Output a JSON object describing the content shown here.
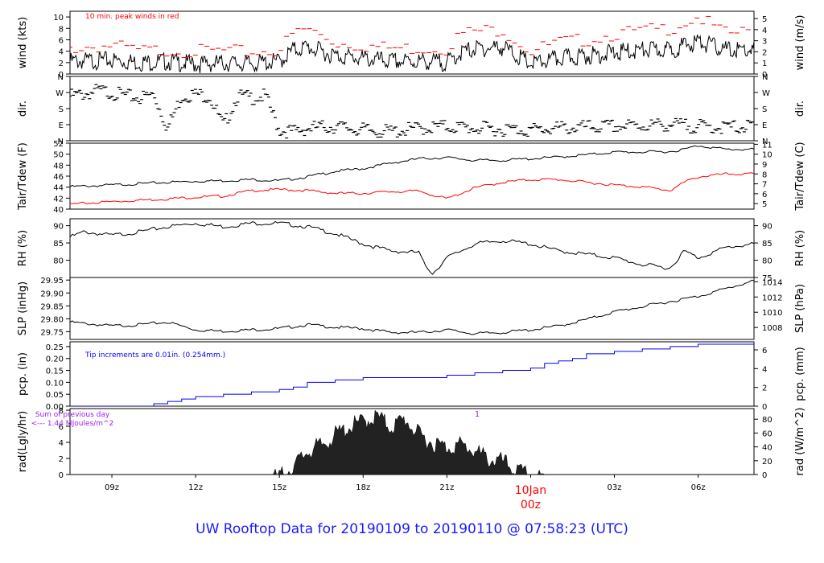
{
  "footer": {
    "title": "UW Rooftop Data for 20190109  to  20190110 @ 07:58:23  (UTC)"
  },
  "colors": {
    "black": "#000000",
    "red": "#ff0000",
    "blue": "#0000ff",
    "purple": "#a020f0",
    "footer": "#1a1aff"
  },
  "x_axis": {
    "range_hours": [
      -16.5,
      8
    ],
    "ticks": [
      {
        "label": "09z",
        "hour": -15
      },
      {
        "label": "12z",
        "hour": -12
      },
      {
        "label": "15z",
        "hour": -9
      },
      {
        "label": "18z",
        "hour": -6
      },
      {
        "label": "21z",
        "hour": -3
      },
      {
        "label": "00z",
        "hour": 0
      },
      {
        "label": "03z",
        "hour": 3
      },
      {
        "label": "06z",
        "hour": 6
      }
    ],
    "day_marker": {
      "hour": 0,
      "date_label": "10Jan",
      "time_label": "00z"
    }
  },
  "chart_data": [
    {
      "id": "wind",
      "type": "line",
      "ylabel_left": "wind (kts)",
      "ylabel_right": "wind (m/s)",
      "ylim": [
        0,
        11
      ],
      "left_ticks": [
        "0",
        "2",
        "4",
        "6",
        "8",
        "10"
      ],
      "right_ticks": [
        "0",
        "1",
        "2",
        "3",
        "4",
        "5"
      ],
      "annotation": "10 min. peak winds in red",
      "series": [
        {
          "name": "wind speed",
          "color": "black",
          "x": [
            -16.5,
            -15,
            -14,
            -13,
            -12,
            -11,
            -10,
            -9,
            -8.5,
            -8,
            -7,
            -6,
            -5,
            -4,
            -3,
            -2.5,
            -2,
            -1,
            0,
            1,
            2,
            3,
            4,
            5,
            6,
            7,
            8
          ],
          "values": [
            3,
            3.2,
            2.8,
            3,
            2.5,
            2.7,
            2.6,
            3,
            5,
            5.5,
            4,
            3.5,
            3,
            3,
            2.8,
            4.5,
            5.2,
            5.5,
            2.5,
            3.5,
            4,
            4.5,
            5,
            5,
            6.5,
            5,
            5
          ]
        },
        {
          "name": "10 min. peak winds",
          "color": "red",
          "x": [
            -16.5,
            -15,
            -14,
            -13,
            -12,
            -11,
            -10,
            -9,
            -8.5,
            -8,
            -7,
            -6,
            -5,
            -4,
            -3,
            -2.5,
            -2,
            -1,
            0,
            1,
            2,
            3,
            4,
            5,
            6,
            7,
            8
          ],
          "values": [
            4.5,
            5,
            4,
            4.2,
            4,
            4,
            3.8,
            4.2,
            7,
            8,
            5.5,
            5,
            4.5,
            4.5,
            4.5,
            7,
            7.5,
            7.8,
            4,
            5.5,
            6,
            7,
            7.5,
            8,
            10,
            7,
            7.5
          ]
        }
      ]
    },
    {
      "id": "dir",
      "type": "scatter",
      "ylabel_left": "dir.",
      "ylabel_right": "dir.",
      "ylim": [
        0,
        360
      ],
      "left_ticks": [
        "N",
        "E",
        "S",
        "W",
        "N"
      ],
      "right_ticks": [
        "N",
        "E",
        "S",
        "W",
        "N"
      ],
      "series": [
        {
          "name": "wind direction",
          "color": "black",
          "x": [
            -16.5,
            -16,
            -15.5,
            -15,
            -14.5,
            -14,
            -13.5,
            -13,
            -12.5,
            -12,
            -11.5,
            -11,
            -10.5,
            -10,
            -9.5,
            -9,
            -8.5,
            -8,
            -7,
            -6,
            -5,
            -4,
            -3,
            -2,
            -1,
            0,
            1,
            2,
            3,
            4,
            5,
            6,
            7,
            8
          ],
          "values": [
            270,
            280,
            300,
            290,
            270,
            260,
            280,
            90,
            270,
            280,
            270,
            100,
            270,
            260,
            270,
            80,
            70,
            90,
            100,
            80,
            70,
            90,
            100,
            90,
            85,
            80,
            90,
            95,
            100,
            105,
            110,
            100,
            95,
            100
          ]
        }
      ]
    },
    {
      "id": "temp",
      "type": "line",
      "ylabel_left": "Tair/Tdew (F)",
      "ylabel_right": "Tair/Tdew (C)",
      "ylim": [
        40,
        52
      ],
      "left_ticks": [
        "40",
        "42",
        "44",
        "46",
        "48",
        "50",
        "52"
      ],
      "right_ticks": [
        "5",
        "6",
        "7",
        "8",
        "9",
        "10",
        "11"
      ],
      "series": [
        {
          "name": "Tair",
          "color": "black",
          "x": [
            -16.5,
            -15,
            -13,
            -12,
            -11,
            -10,
            -9,
            -8,
            -7,
            -6,
            -5,
            -4,
            -3,
            -2,
            -1,
            0,
            1,
            2,
            3,
            4,
            5,
            5.5,
            6,
            7,
            8
          ],
          "values": [
            44.2,
            44.5,
            45,
            45.2,
            45.3,
            45.5,
            45.3,
            46,
            47,
            47.5,
            48.5,
            49.3,
            49.5,
            49,
            49,
            49.3,
            49.6,
            50,
            50.5,
            50.5,
            50.6,
            51,
            51.7,
            51,
            51
          ]
        },
        {
          "name": "Tdew",
          "color": "red",
          "x": [
            -16.5,
            -15,
            -13,
            -12,
            -11,
            -10,
            -9,
            -8,
            -7,
            -6,
            -5,
            -4,
            -3,
            -2,
            -1,
            0,
            1,
            2,
            3,
            4,
            5,
            5.5,
            6,
            7,
            8
          ],
          "values": [
            41,
            41.5,
            42,
            42.3,
            42.5,
            43.5,
            43.7,
            43.5,
            43,
            43,
            43.3,
            43.4,
            42,
            44,
            45,
            45.5,
            45.5,
            45,
            44.5,
            44.2,
            43.5,
            45,
            46,
            46.5,
            46.5
          ]
        }
      ]
    },
    {
      "id": "rh",
      "type": "line",
      "ylabel_left": "RH (%)",
      "ylabel_right": "RH (%)",
      "ylim": [
        75,
        92
      ],
      "left_ticks": [
        "80",
        "85",
        "90"
      ],
      "right_ticks": [
        "75",
        "80",
        "85",
        "90"
      ],
      "series": [
        {
          "name": "RH",
          "color": "black",
          "x": [
            -16.5,
            -16,
            -15,
            -14,
            -13,
            -12,
            -11,
            -10,
            -9,
            -8,
            -7,
            -6,
            -5,
            -4,
            -3.8,
            -3.5,
            -3,
            -2,
            -1,
            0,
            1,
            2,
            3,
            4,
            5,
            5.5,
            6,
            7,
            8
          ],
          "values": [
            87,
            88.5,
            87.5,
            88.5,
            90,
            91,
            90,
            91,
            91,
            90,
            88,
            85,
            83,
            82.5,
            79,
            76.5,
            81,
            85,
            86,
            85,
            83,
            82,
            81,
            79,
            78,
            83,
            81,
            84,
            85
          ]
        }
      ]
    },
    {
      "id": "slp",
      "type": "line",
      "ylabel_left": "SLP (inHg)",
      "ylabel_right": "SLP (hPa)",
      "ylim": [
        29.72,
        29.96
      ],
      "left_ticks": [
        "29.75",
        "29.80",
        "29.85",
        "29.90",
        "29.95"
      ],
      "right_ticks": [
        "1008",
        "1010",
        "1012",
        "1014"
      ],
      "series": [
        {
          "name": "SLP",
          "color": "black",
          "x": [
            -16.5,
            -15,
            -14,
            -13,
            -12,
            -11,
            -10,
            -9,
            -8,
            -7,
            -6,
            -5,
            -4,
            -3,
            -2,
            -1,
            0,
            1,
            2,
            3,
            4,
            5,
            6,
            7,
            8
          ],
          "values": [
            29.79,
            29.775,
            29.78,
            29.79,
            29.76,
            29.755,
            29.76,
            29.765,
            29.78,
            29.77,
            29.765,
            29.75,
            29.75,
            29.76,
            29.745,
            29.75,
            29.76,
            29.775,
            29.8,
            29.83,
            29.85,
            29.87,
            29.89,
            29.92,
            29.95
          ]
        }
      ]
    },
    {
      "id": "pcp",
      "type": "line",
      "ylabel_left": "pcp. (in)",
      "ylabel_right": "pcp. (mm)",
      "ylim": [
        0,
        0.27
      ],
      "left_ticks": [
        "0.00",
        "0.05",
        "0.10",
        "0.15",
        "0.20",
        "0.25"
      ],
      "right_ticks": [
        "0",
        "2",
        "4",
        "6"
      ],
      "annotation": "Tip increments are 0.01in. (0.254mm.)",
      "series": [
        {
          "name": "cumulative precipitation",
          "color": "blue",
          "x": [
            -16.5,
            -14,
            -13.5,
            -13,
            -12.5,
            -12,
            -11,
            -10,
            -9,
            -8.5,
            -8,
            -7,
            -6,
            -5,
            -4,
            -3,
            -2,
            -1,
            0,
            0.5,
            1,
            1.5,
            2,
            3,
            4,
            5,
            6,
            7,
            8
          ],
          "values": [
            0,
            0,
            0.01,
            0.02,
            0.03,
            0.04,
            0.05,
            0.06,
            0.07,
            0.08,
            0.1,
            0.11,
            0.12,
            0.12,
            0.12,
            0.13,
            0.14,
            0.15,
            0.16,
            0.18,
            0.19,
            0.2,
            0.22,
            0.23,
            0.24,
            0.25,
            0.26,
            0.26,
            0.26
          ]
        }
      ]
    },
    {
      "id": "rad",
      "type": "area",
      "ylabel_left": "rad(Lgly/hr)",
      "ylabel_right": "rad (W/m^2)",
      "ylim": [
        0,
        8.2
      ],
      "left_ticks": [
        "0",
        "2",
        "4",
        "6",
        "8"
      ],
      "right_ticks": [
        "0",
        "20",
        "40",
        "60",
        "80"
      ],
      "annotation_lines": [
        "Sum of previous day",
        "<--- 1.44 MJoules/m^2"
      ],
      "marker_label": "1",
      "series": [
        {
          "name": "solar radiation",
          "color": "black",
          "x": [
            -16.5,
            -9.5,
            -9,
            -8.5,
            -8,
            -7.5,
            -7,
            -6.5,
            -6,
            -5.5,
            -5,
            -4.5,
            -4,
            -3.5,
            -3,
            -2.5,
            -2,
            -1.5,
            -1,
            -0.5,
            0,
            0.5,
            8
          ],
          "values": [
            0,
            0,
            0.3,
            1.5,
            3.5,
            4.2,
            5.5,
            6.5,
            7.2,
            7.8,
            6.5,
            7.5,
            5.5,
            4.5,
            4,
            4.3,
            3.5,
            2.5,
            2.2,
            1,
            0.4,
            0,
            0
          ]
        }
      ]
    }
  ]
}
